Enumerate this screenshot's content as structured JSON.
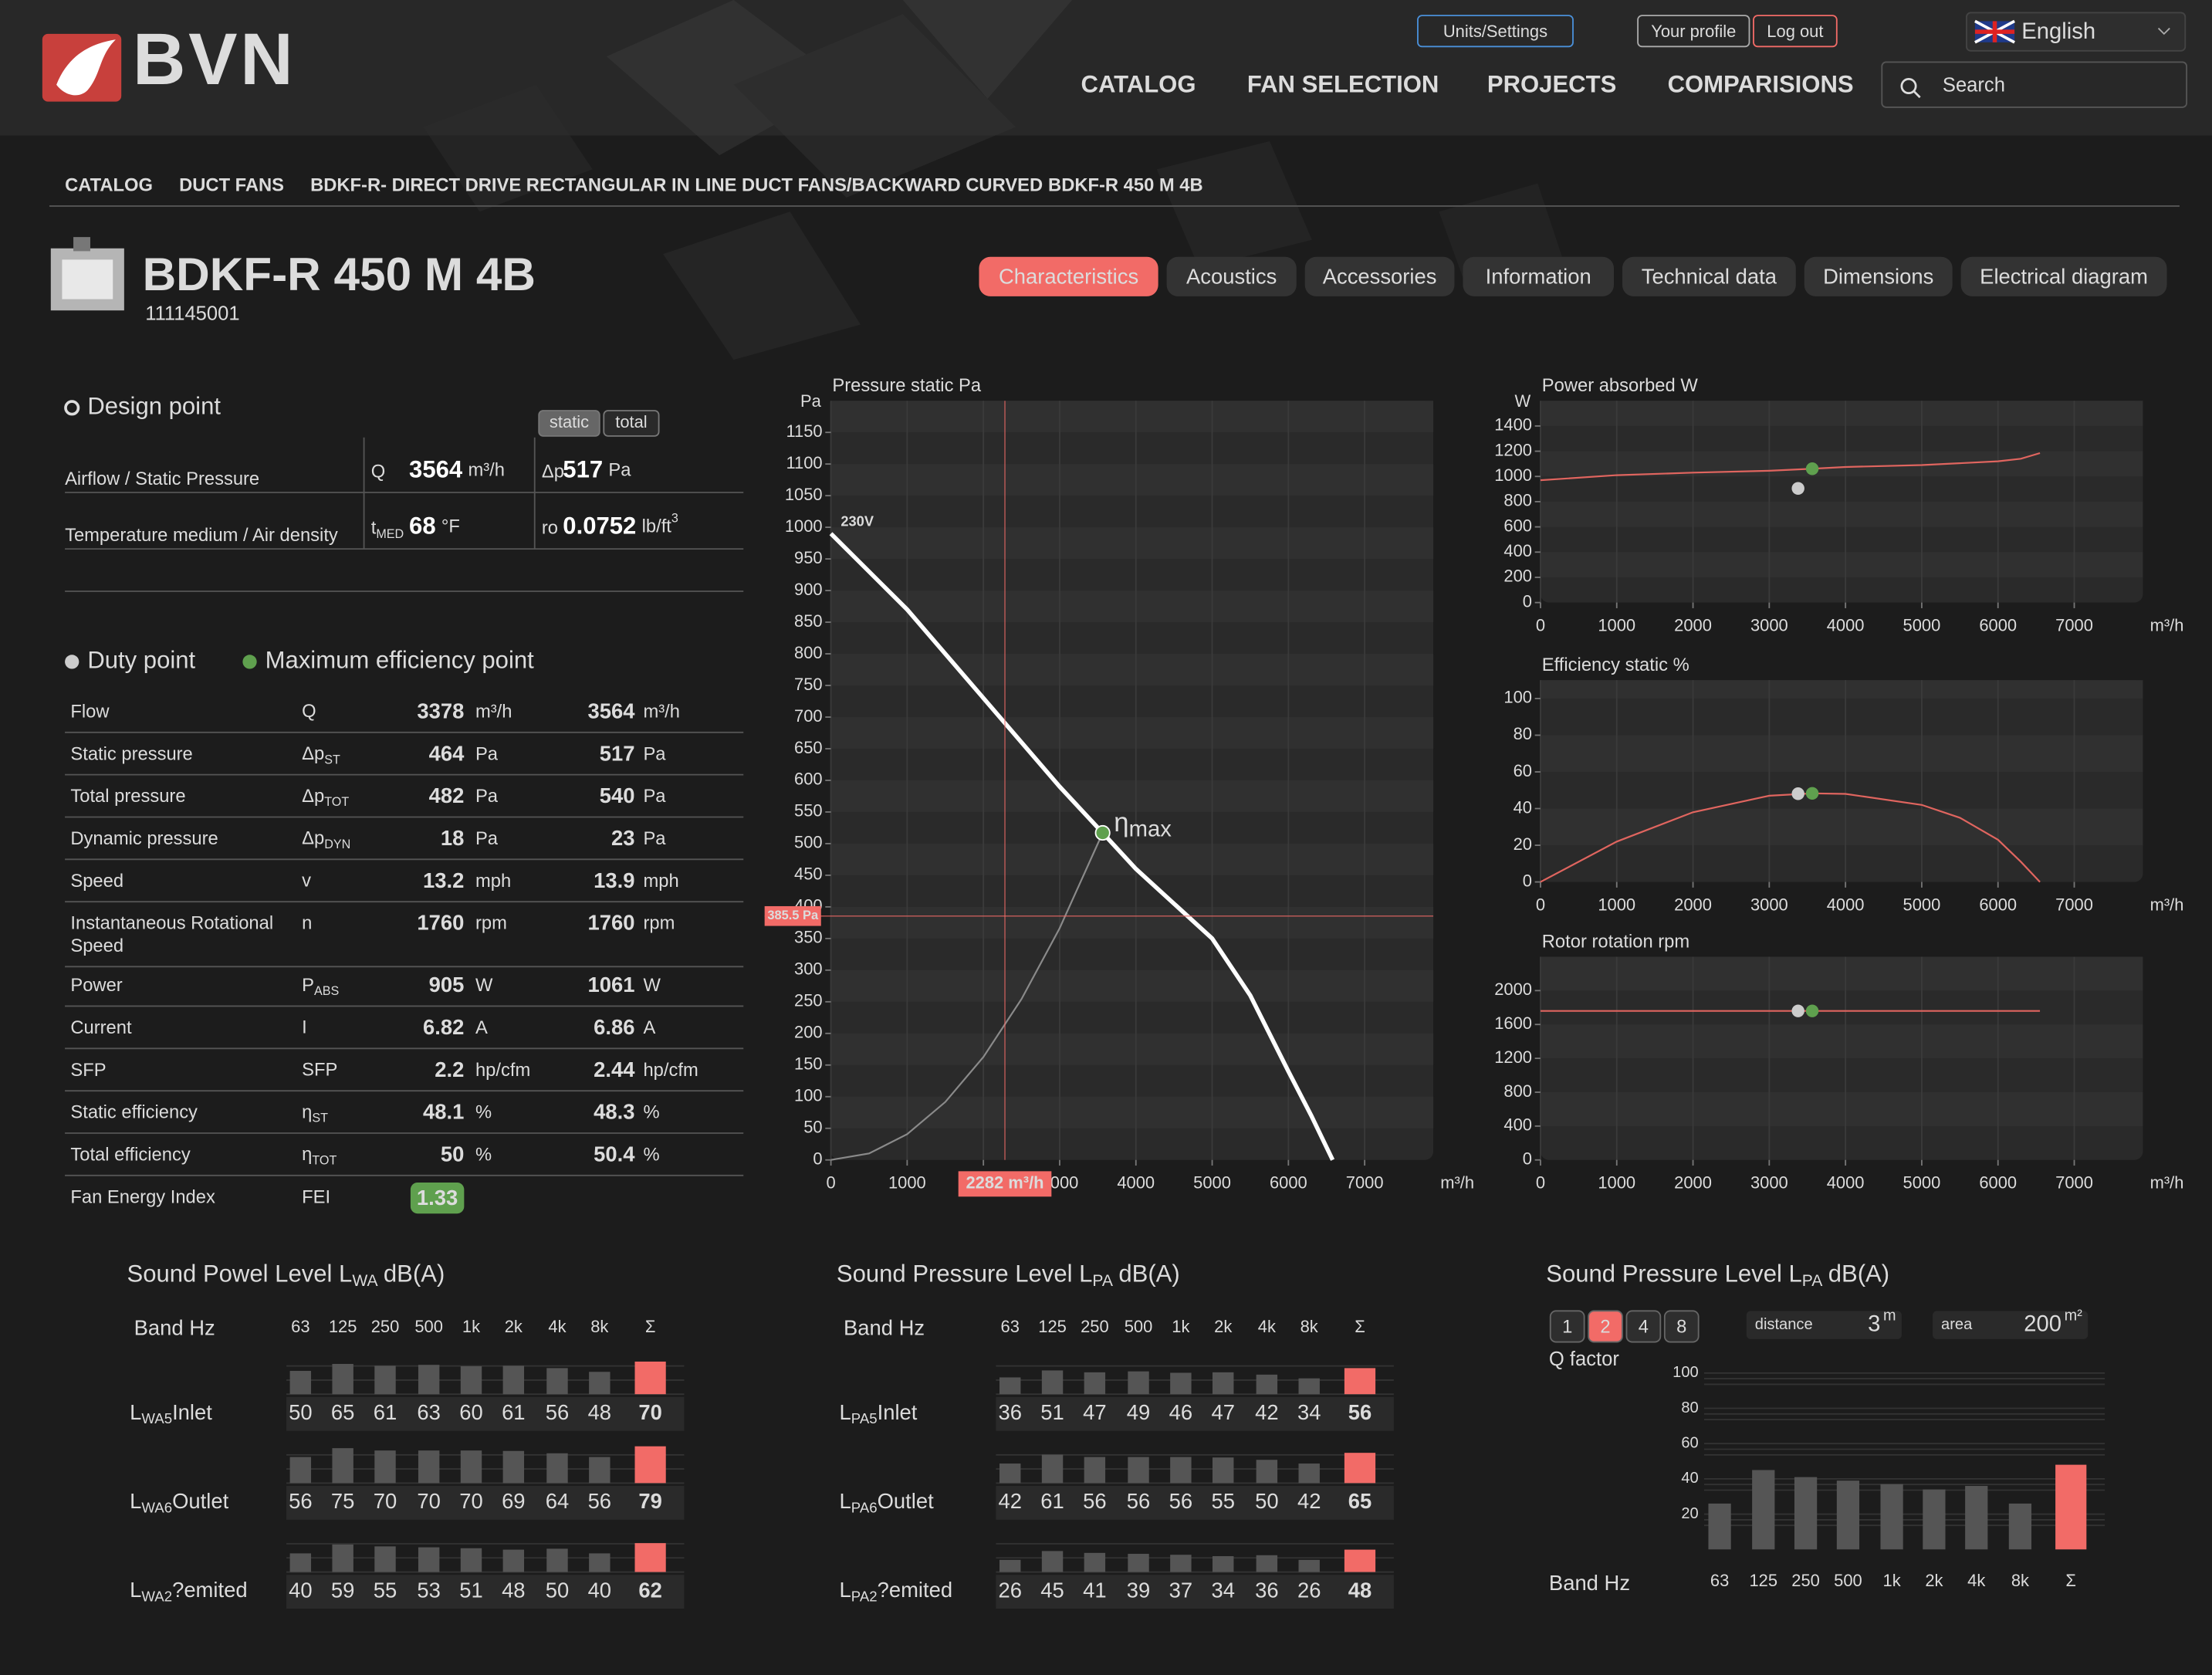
{
  "header": {
    "logo": "BVN",
    "buttons": [
      "Units/Settings",
      "Your profile",
      "Log out"
    ],
    "language": "English",
    "nav": [
      "CATALOG",
      "FAN SELECTION",
      "PROJECTS",
      "COMPARISIONS"
    ],
    "search": "Search"
  },
  "breadcrumbs": [
    "CATALOG",
    "DUCT FANS",
    "BDKF-R- DIRECT DRIVE RECTANGULAR IN LINE DUCT FANS/BACKWARD CURVED",
    "BDKF-R 450 M 4B"
  ],
  "product": {
    "title": "BDKF-R 450 M 4B",
    "code": "111145001"
  },
  "tabs": {
    "items": [
      "Characteristics",
      "Acoustics",
      "Accessories",
      "Information",
      "Technical data",
      "Dimensions",
      "Electrical diagram"
    ],
    "active": 0
  },
  "design_point": {
    "title": "Design point",
    "modes": [
      "static",
      "total"
    ],
    "active_mode": 0,
    "rows": [
      {
        "label": "Airflow / Static Pressure",
        "cells": [
          {
            "symbol": "Q",
            "value": 3564,
            "unit": "m³/h"
          },
          {
            "symbol": "Δp",
            "value": 517,
            "unit": "Pa"
          }
        ]
      },
      {
        "label": "Temperature medium / Air density",
        "cells": [
          {
            "symbol": "t",
            "sub": "MED",
            "value": 68,
            "unit": "°F"
          },
          {
            "symbol": "ro",
            "value": 0.0752,
            "unit": "lb/ft",
            "sup": "3"
          }
        ]
      }
    ]
  },
  "duty": {
    "legend": [
      "Duty point",
      "Maximum efficiency point"
    ],
    "rows": [
      {
        "label": "Flow",
        "symbol": "Q",
        "duty": 3378,
        "max": 3564,
        "unit": "m³/h"
      },
      {
        "label": "Static pressure",
        "symbol": "Δp",
        "sub": "ST",
        "duty": 464,
        "max": 517,
        "unit": "Pa"
      },
      {
        "label": "Total pressure",
        "symbol": "Δp",
        "sub": "TOT",
        "duty": 482,
        "max": 540,
        "unit": "Pa"
      },
      {
        "label": "Dynamic pressure",
        "symbol": "Δp",
        "sub": "DYN",
        "duty": 18,
        "max": 23,
        "unit": "Pa"
      },
      {
        "label": "Speed",
        "symbol": "v",
        "duty": 13.2,
        "max": 13.9,
        "unit": "mph"
      },
      {
        "label": [
          "Instantaneous Rotational",
          "Speed"
        ],
        "symbol": "n",
        "duty": 1760,
        "max": 1760,
        "unit": "rpm"
      },
      {
        "label": "Power",
        "symbol": "P",
        "sub": "ABS",
        "duty": 905,
        "max": 1061,
        "unit": "W"
      },
      {
        "label": "Current",
        "symbol": "I",
        "duty": 6.82,
        "max": 6.86,
        "unit": "A"
      },
      {
        "label": "SFP",
        "symbol": "SFP",
        "duty": 2.2,
        "max": 2.44,
        "unit": "hp/cfm"
      },
      {
        "label": "Static efficiency",
        "symbol": "η",
        "sub": "ST",
        "duty": 48.1,
        "max": 48.3,
        "unit": "%"
      },
      {
        "label": "Total efficiency",
        "symbol": "η",
        "sub": "TOT",
        "duty": 50,
        "max": 50.4,
        "unit": "%"
      }
    ],
    "fei": {
      "label": "Fan Energy Index",
      "symbol": "FEI",
      "value": 1.33
    }
  },
  "chart_data": [
    {
      "type": "line",
      "title": "Pressure static Pa",
      "y_label": "Pa",
      "x_label": "m³/h",
      "xlim": [
        0,
        7900
      ],
      "xticks": [
        0,
        1000,
        2000,
        3000,
        4000,
        5000,
        6000,
        7000
      ],
      "ylim": [
        0,
        1200
      ],
      "yticks": [
        0,
        50,
        100,
        150,
        200,
        250,
        300,
        350,
        400,
        450,
        500,
        550,
        600,
        650,
        700,
        750,
        800,
        850,
        900,
        950,
        1000,
        1050,
        1100,
        1150
      ],
      "grid": true,
      "series": [
        {
          "name": "230V",
          "color": "#ffffff",
          "x": [
            0,
            1000,
            2000,
            3000,
            3564,
            4000,
            5000,
            5500,
            6000,
            6300,
            6580
          ],
          "values": [
            990,
            870,
            730,
            590,
            517,
            460,
            350,
            260,
            140,
            70,
            0
          ]
        },
        {
          "color": "#8a8a8a",
          "x": [
            0,
            500,
            1000,
            1500,
            2000,
            2500,
            3000,
            3564
          ],
          "values": [
            0,
            10.2,
            40.7,
            91.6,
            162.8,
            254.4,
            366.3,
            517
          ]
        }
      ],
      "points": [
        {
          "x": 3564,
          "y": 517,
          "color": "#5fa04e"
        }
      ],
      "annotation": {
        "text": "η",
        "sub": "max"
      },
      "crosshair": {
        "x": 2282,
        "x_label": "2282 m³/h",
        "y": 385.5,
        "y_label": "385.5 Pa",
        "color": "#f26b67"
      }
    },
    {
      "type": "line",
      "title": "Power absorbed W",
      "y_label": "W",
      "x_label": "m³/h",
      "xlim": [
        0,
        7900
      ],
      "xticks": [
        0,
        1000,
        2000,
        3000,
        4000,
        5000,
        6000,
        7000
      ],
      "ylim": [
        0,
        1600
      ],
      "yticks": [
        0,
        200,
        400,
        600,
        800,
        1000,
        1200,
        1400
      ],
      "grid": true,
      "series": [
        {
          "color": "#e0655f",
          "x": [
            0,
            1000,
            2000,
            3000,
            3564,
            4000,
            5000,
            6000,
            6300,
            6550
          ],
          "values": [
            970,
            1010,
            1030,
            1045,
            1061,
            1075,
            1090,
            1120,
            1140,
            1185
          ]
        }
      ],
      "points": [
        {
          "x": 3378,
          "y": 905,
          "color": "#cccccc"
        },
        {
          "x": 3564,
          "y": 1061,
          "color": "#5fa04e"
        }
      ]
    },
    {
      "type": "line",
      "title": "Efficiency static %",
      "x_label": "m³/h",
      "xlim": [
        0,
        7900
      ],
      "xticks": [
        0,
        1000,
        2000,
        3000,
        4000,
        5000,
        6000,
        7000
      ],
      "ylim": [
        0,
        110
      ],
      "yticks": [
        0,
        20,
        40,
        60,
        80,
        100
      ],
      "grid": true,
      "series": [
        {
          "color": "#e0655f",
          "x": [
            0,
            1000,
            2000,
            3000,
            3564,
            4000,
            5000,
            5500,
            6000,
            6300,
            6550
          ],
          "values": [
            0,
            22,
            38,
            47,
            48.3,
            48,
            42,
            35,
            23,
            11,
            0
          ]
        }
      ],
      "points": [
        {
          "x": 3378,
          "y": 48.1,
          "color": "#cccccc"
        },
        {
          "x": 3564,
          "y": 48.3,
          "color": "#5fa04e"
        }
      ]
    },
    {
      "type": "line",
      "title": "Rotor rotation rpm",
      "x_label": "m³/h",
      "xlim": [
        0,
        7900
      ],
      "xticks": [
        0,
        1000,
        2000,
        3000,
        4000,
        5000,
        6000,
        7000
      ],
      "ylim": [
        0,
        2400
      ],
      "yticks": [
        0,
        400,
        800,
        1200,
        1600,
        2000
      ],
      "grid": true,
      "series": [
        {
          "color": "#e0655f",
          "x": [
            0,
            6550
          ],
          "values": [
            1760,
            1760
          ]
        }
      ],
      "points": [
        {
          "x": 3378,
          "y": 1760,
          "color": "#cccccc"
        },
        {
          "x": 3564,
          "y": 1760,
          "color": "#5fa04e"
        }
      ]
    },
    {
      "type": "bar",
      "x_label": "Band Hz",
      "categories": [
        "63",
        "125",
        "250",
        "500",
        "1k",
        "2k",
        "4k",
        "8k",
        "Σ"
      ],
      "values": [
        26,
        45,
        41,
        39,
        37,
        34,
        36,
        26,
        48
      ],
      "colors": [
        "#555555",
        "#555555",
        "#555555",
        "#555555",
        "#555555",
        "#555555",
        "#555555",
        "#555555",
        "#f26b67"
      ],
      "ylim": [
        0,
        104
      ],
      "yticks": [
        20,
        40,
        60,
        80,
        100
      ]
    }
  ],
  "sound": [
    {
      "title": {
        "text": "Sound Powel Level L",
        "sub": "WA",
        "suffix": "dB(A)"
      },
      "header": "Band Hz",
      "bands": [
        "63",
        "125",
        "250",
        "500",
        "1k",
        "2k",
        "4k",
        "8k",
        "Σ"
      ],
      "rows": [
        {
          "symbol": "L",
          "sub": "WA5",
          "name": "Inlet",
          "values": [
            50,
            65,
            61,
            63,
            60,
            61,
            56,
            48
          ],
          "total": 70
        },
        {
          "symbol": "L",
          "sub": "WA6",
          "name": "Outlet",
          "values": [
            56,
            75,
            70,
            70,
            70,
            69,
            64,
            56
          ],
          "total": 79
        },
        {
          "symbol": "L",
          "sub": "WA2",
          "name": "?emited",
          "values": [
            40,
            59,
            55,
            53,
            51,
            48,
            50,
            40
          ],
          "total": 62
        }
      ]
    },
    {
      "title": {
        "text": "Sound Pressure Level L",
        "sub": "PA",
        "suffix": "dB(A)"
      },
      "header": "Band Hz",
      "bands": [
        "63",
        "125",
        "250",
        "500",
        "1k",
        "2k",
        "4k",
        "8k",
        "Σ"
      ],
      "rows": [
        {
          "symbol": "L",
          "sub": "PA5",
          "name": "Inlet",
          "values": [
            36,
            51,
            47,
            49,
            46,
            47,
            42,
            34
          ],
          "total": 56
        },
        {
          "symbol": "L",
          "sub": "PA6",
          "name": "Outlet",
          "values": [
            42,
            61,
            56,
            56,
            56,
            55,
            50,
            42
          ],
          "total": 65
        },
        {
          "symbol": "L",
          "sub": "PA2",
          "name": "?emited",
          "values": [
            26,
            45,
            41,
            39,
            37,
            34,
            36,
            26
          ],
          "total": 48
        }
      ]
    },
    {
      "title": {
        "text": "Sound Pressure Level L",
        "sub": "PA",
        "suffix": "dB(A)"
      },
      "q_factor": {
        "label": "Q factor",
        "options": [
          1,
          2,
          4,
          8
        ],
        "active": 1
      },
      "distance": {
        "label": "distance",
        "value": 3,
        "unit": "m"
      },
      "area": {
        "label": "area",
        "value": 200,
        "unit": "m²"
      }
    }
  ]
}
